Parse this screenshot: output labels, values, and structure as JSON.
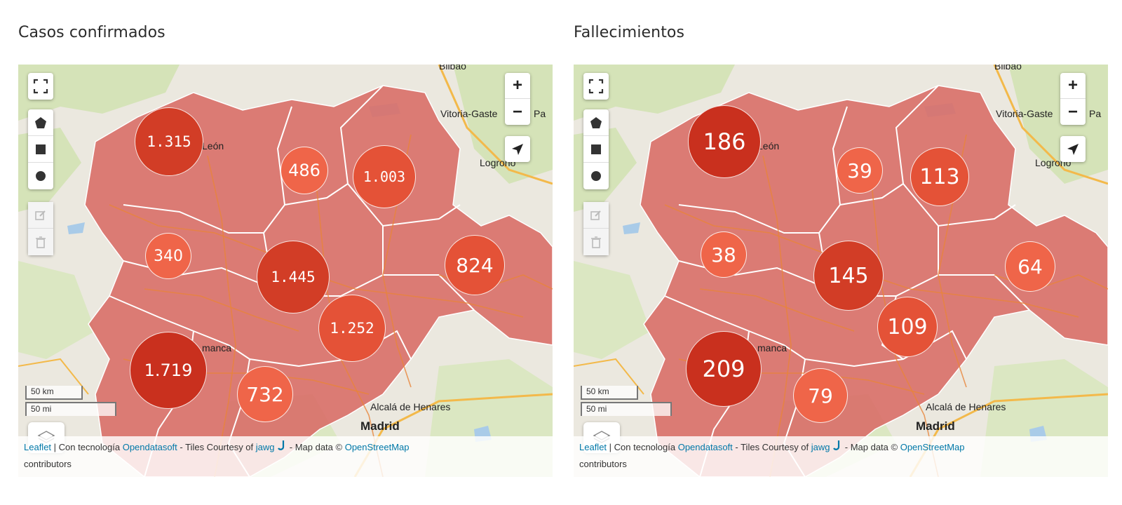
{
  "panels": [
    {
      "title": "Casos confirmados",
      "clusters": [
        {
          "label": "1.315",
          "tone": "dark",
          "font": "mono"
        },
        {
          "label": "486",
          "tone": "light",
          "font": "sans"
        },
        {
          "label": "1.003",
          "tone": "mid",
          "font": "mono"
        },
        {
          "label": "340",
          "tone": "light",
          "font": "sans"
        },
        {
          "label": "1.445",
          "tone": "dark",
          "font": "mono"
        },
        {
          "label": "824",
          "tone": "mid",
          "font": "sans"
        },
        {
          "label": "1.252",
          "tone": "mid",
          "font": "mono"
        },
        {
          "label": "1.719",
          "tone": "darkest",
          "font": "sans"
        },
        {
          "label": "732",
          "tone": "light",
          "font": "sans"
        }
      ]
    },
    {
      "title": "Fallecimientos",
      "clusters": [
        {
          "label": "186",
          "tone": "darkest",
          "font": "sans"
        },
        {
          "label": "39",
          "tone": "light",
          "font": "sans"
        },
        {
          "label": "113",
          "tone": "mid",
          "font": "sans"
        },
        {
          "label": "38",
          "tone": "light",
          "font": "sans"
        },
        {
          "label": "145",
          "tone": "dark",
          "font": "sans"
        },
        {
          "label": "64",
          "tone": "light",
          "font": "sans"
        },
        {
          "label": "109",
          "tone": "mid",
          "font": "sans"
        },
        {
          "label": "209",
          "tone": "darkest",
          "font": "sans"
        },
        {
          "label": "79",
          "tone": "light",
          "font": "sans"
        }
      ]
    }
  ],
  "map": {
    "places": {
      "bilbao": "Bilbao",
      "vitoria": "Vitoria-Gaste",
      "pa": "Pa",
      "leon": "León",
      "logrono": "Logroño",
      "salamanca": "manca",
      "alcala": "Alcalá de Henares",
      "madrid": "Madrid"
    },
    "scale": {
      "km": "50 km",
      "mi": "50 mi"
    },
    "zoom": {
      "in": "+",
      "out": "−"
    },
    "attribution": {
      "leaflet": "Leaflet",
      "sep1": " | Con tecnología ",
      "ods": "Opendatasoft",
      "tiles": " - Tiles Courtesy of ",
      "jawg": "jawg",
      "mapdata": " - Map data © ",
      "osm": "OpenStreetMap",
      "contrib": "contributors"
    },
    "icons": [
      "fullscreen-icon",
      "polygon-draw-icon",
      "rectangle-draw-icon",
      "circle-draw-icon",
      "edit-icon",
      "delete-icon",
      "locate-icon",
      "layers-icon"
    ],
    "colors": {
      "region_fill": "#d9716a",
      "darkest": "#c9301e",
      "dark": "#d23d26",
      "mid": "#e45237",
      "light": "#ef6549",
      "link": "#0078a8"
    }
  }
}
